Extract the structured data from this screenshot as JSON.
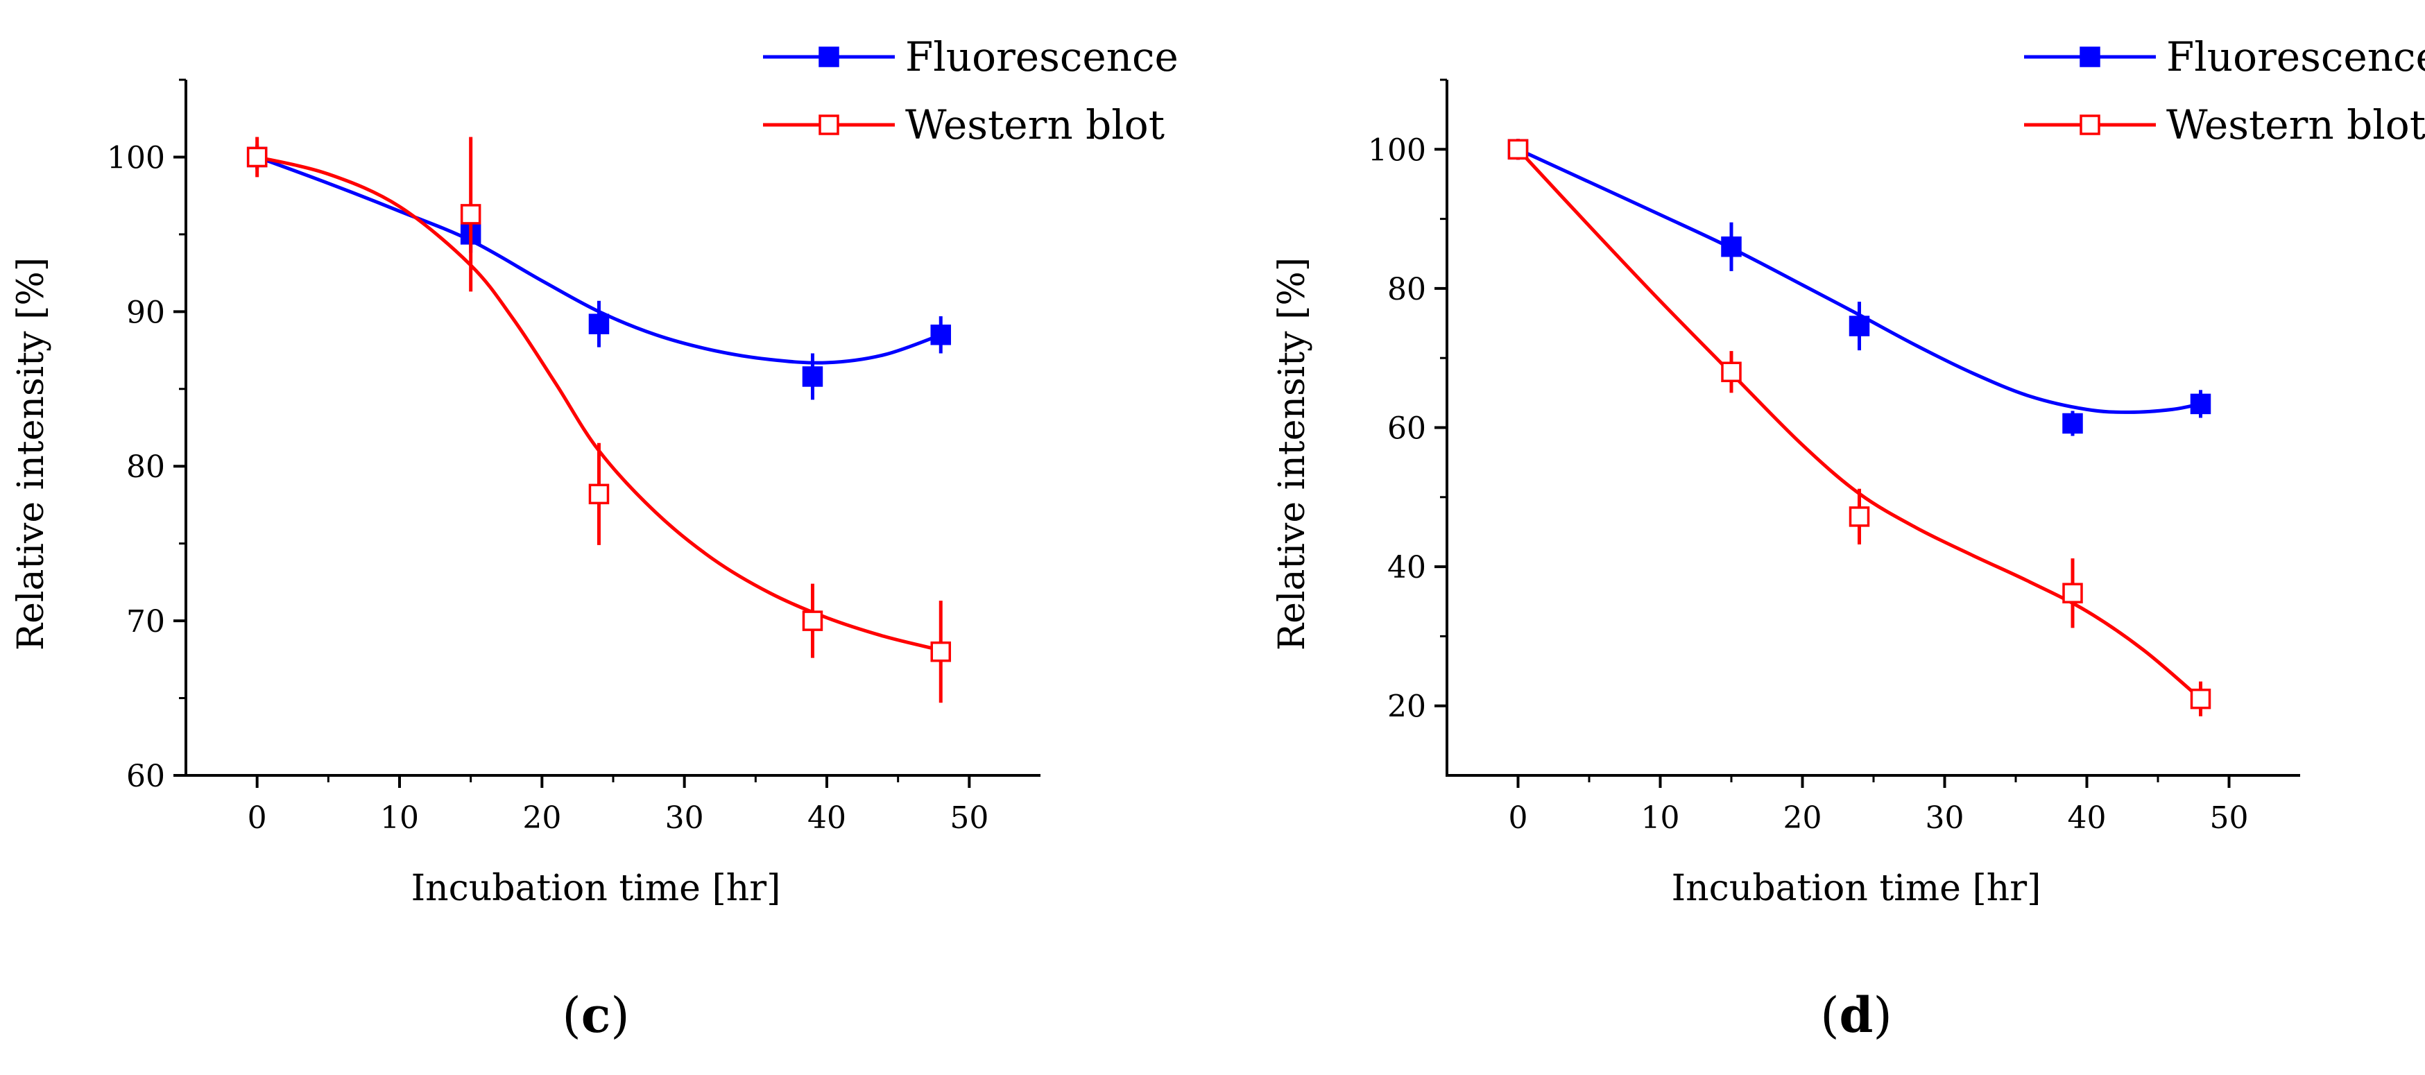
{
  "chart_data": [
    {
      "type": "line",
      "panel_label": "c",
      "xlabel": "Incubation time [hr]",
      "ylabel": "Relative intensity [%]",
      "xlim": [
        -5,
        55
      ],
      "ylim": [
        60,
        105
      ],
      "xticks": [
        0,
        10,
        20,
        30,
        40,
        50
      ],
      "yticks": [
        60,
        70,
        80,
        90,
        100
      ],
      "legend_position": "top-right",
      "series": [
        {
          "name": "Fluorescence",
          "color": "#0000ff",
          "marker": "filled-square",
          "x": [
            0,
            15,
            24,
            39,
            48
          ],
          "y": [
            100,
            95,
            89.2,
            85.8,
            88.5
          ],
          "error": [
            0.8,
            1.2,
            1.5,
            1.5,
            1.2
          ],
          "fit_x": [
            0,
            5,
            10,
            15,
            20,
            24,
            28,
            32,
            36,
            40,
            44,
            48
          ],
          "fit_y": [
            100,
            98.3,
            96.5,
            94.6,
            92.0,
            90.0,
            88.5,
            87.5,
            86.9,
            86.7,
            87.2,
            88.5
          ]
        },
        {
          "name": "Western blot",
          "color": "#ff0000",
          "marker": "open-square",
          "x": [
            0,
            15,
            24,
            39,
            48
          ],
          "y": [
            100,
            96.3,
            78.2,
            70,
            68
          ],
          "error": [
            1.3,
            5.0,
            3.3,
            2.4,
            3.3
          ],
          "fit_x": [
            0,
            5,
            10,
            15,
            18,
            21,
            24,
            28,
            32,
            36,
            40,
            44,
            48
          ],
          "fit_y": [
            100,
            98.9,
            96.8,
            93.0,
            89.5,
            85.3,
            81.0,
            77.0,
            74.0,
            71.8,
            70.2,
            69.0,
            68.1
          ]
        }
      ]
    },
    {
      "type": "line",
      "panel_label": "d",
      "xlabel": "Incubation time [hr]",
      "ylabel": "Relative intensity [%]",
      "xlim": [
        -5,
        55
      ],
      "ylim": [
        10,
        110
      ],
      "xticks": [
        0,
        10,
        20,
        30,
        40,
        50
      ],
      "yticks": [
        20,
        40,
        60,
        80,
        100
      ],
      "legend_position": "top-right",
      "series": [
        {
          "name": "Fluorescence",
          "color": "#0000ff",
          "marker": "filled-square",
          "x": [
            0,
            15,
            24,
            39,
            48
          ],
          "y": [
            100,
            86,
            74.6,
            60.6,
            63.4
          ],
          "error": [
            1.5,
            3.5,
            3.5,
            1.8,
            2.0
          ],
          "fit_x": [
            0,
            5,
            10,
            15,
            20,
            24,
            28,
            32,
            36,
            40,
            43,
            46,
            48
          ],
          "fit_y": [
            100,
            95.3,
            90.6,
            85.8,
            80.5,
            76.2,
            71.8,
            67.8,
            64.5,
            62.6,
            62.2,
            62.6,
            63.4
          ]
        },
        {
          "name": "Western blot",
          "color": "#ff0000",
          "marker": "open-square",
          "x": [
            0,
            15,
            24,
            39,
            48
          ],
          "y": [
            100,
            68,
            47.2,
            36.2,
            21
          ],
          "error": [
            1.5,
            3.0,
            4.0,
            5.0,
            2.5
          ],
          "fit_x": [
            0,
            5,
            10,
            15,
            20,
            24,
            28,
            32,
            36,
            40,
            44,
            48
          ],
          "fit_y": [
            100,
            89.0,
            78.2,
            67.8,
            57.5,
            50.5,
            45.6,
            41.6,
            37.8,
            33.6,
            28.0,
            21.0
          ]
        }
      ]
    }
  ]
}
